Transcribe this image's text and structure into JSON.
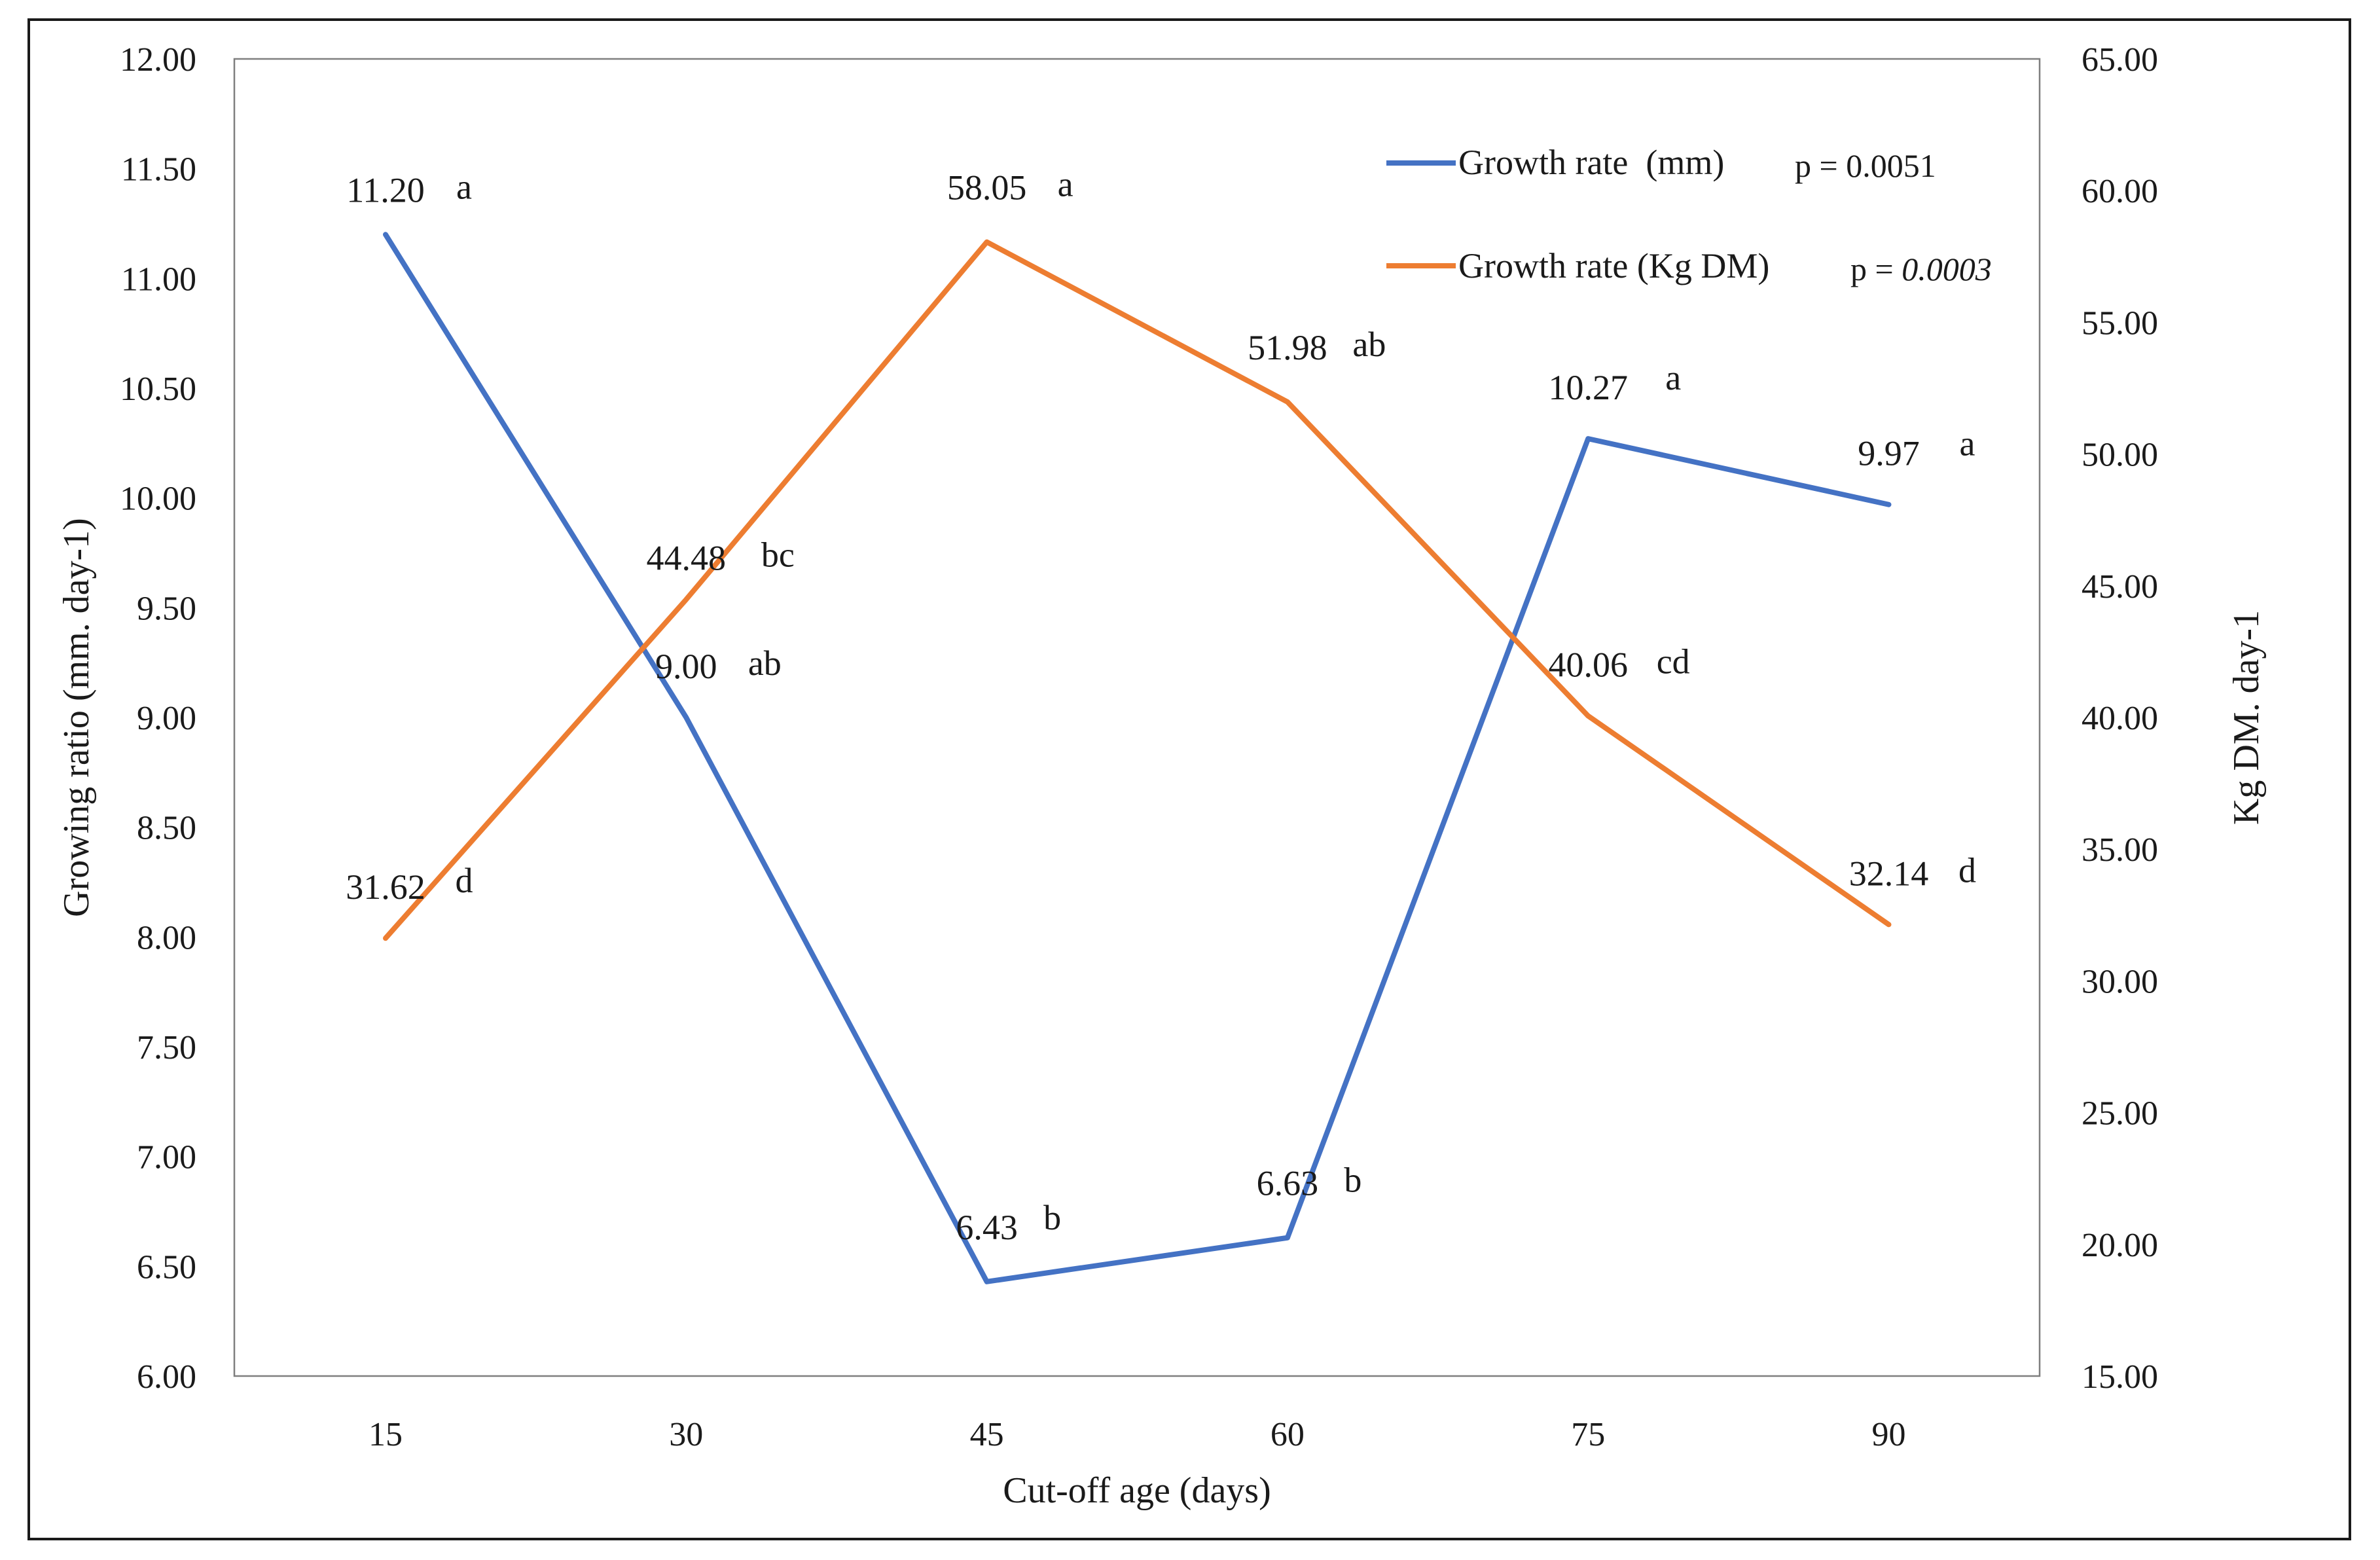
{
  "chart_data": {
    "type": "line",
    "xlabel": "Cut-off age (days)",
    "ylabel_left": "Growing ratio (mm. day-1)",
    "ylabel_right": "Kg DM. day-1",
    "categories": [
      "15",
      "30",
      "45",
      "60",
      "75",
      "90"
    ],
    "ylim_left": [
      6.0,
      12.0
    ],
    "ylim_right": [
      15.0,
      65.0
    ],
    "yticks_left": [
      "6.00",
      "6.50",
      "7.00",
      "7.50",
      "8.00",
      "8.50",
      "9.00",
      "9.50",
      "10.00",
      "10.50",
      "11.00",
      "11.50",
      "12.00"
    ],
    "yticks_right": [
      "15.00",
      "20.00",
      "25.00",
      "30.00",
      "35.00",
      "40.00",
      "45.00",
      "50.00",
      "55.00",
      "60.00",
      "65.00"
    ],
    "grid": false,
    "legend_position": "top-right",
    "series": [
      {
        "name": "Growth rate  (mm)",
        "p_value": "p = 0.0051",
        "axis": "left",
        "color": "#4472C4",
        "values": [
          11.2,
          9.0,
          6.43,
          6.63,
          10.27,
          9.97
        ],
        "value_labels": [
          "11.20",
          "9.00",
          "6.43",
          "6.63",
          "10.27",
          "9.97"
        ],
        "letters": [
          "a",
          "ab",
          "b",
          "b",
          "a",
          "a"
        ]
      },
      {
        "name": "Growth rate (Kg DM)",
        "p_value_prefix": "p = ",
        "p_value_number": "0.0003",
        "axis": "right",
        "color": "#ED7D31",
        "values": [
          31.62,
          44.48,
          58.05,
          51.98,
          40.06,
          32.14
        ],
        "value_labels": [
          "31.62",
          "44.48",
          "58.05",
          "51.98",
          "40.06",
          "32.14"
        ],
        "letters": [
          "d",
          "bc",
          "a",
          "ab",
          "cd",
          "d"
        ]
      }
    ]
  }
}
